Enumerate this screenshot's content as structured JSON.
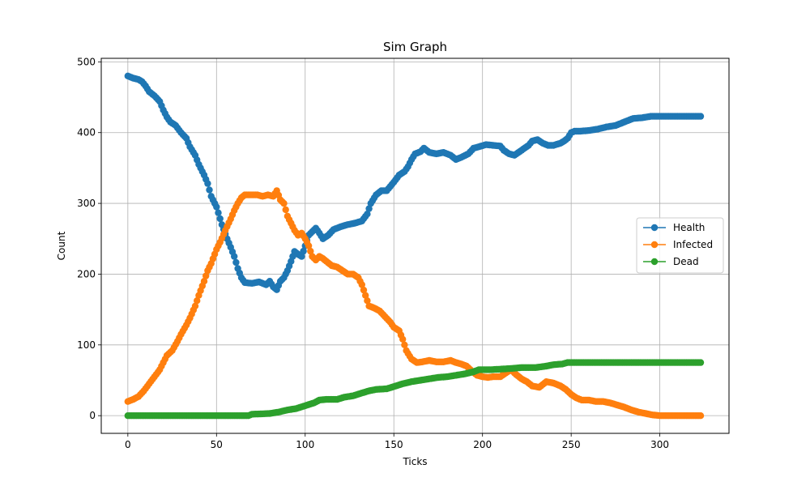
{
  "chart_data": {
    "type": "line",
    "title": "Sim Graph",
    "xlabel": "Ticks",
    "ylabel": "Count",
    "xlim": [
      -15,
      339
    ],
    "ylim": [
      -25,
      505
    ],
    "xticks": [
      0,
      50,
      100,
      150,
      200,
      250,
      300
    ],
    "yticks": [
      0,
      100,
      200,
      300,
      400,
      500
    ],
    "grid": true,
    "legend_position": "center-right",
    "series": [
      {
        "name": "Health",
        "color": "#1f77b4",
        "points": [
          [
            0,
            480
          ],
          [
            3,
            477
          ],
          [
            6,
            475
          ],
          [
            8,
            472
          ],
          [
            10,
            466
          ],
          [
            12,
            458
          ],
          [
            15,
            452
          ],
          [
            18,
            444
          ],
          [
            20,
            432
          ],
          [
            22,
            422
          ],
          [
            24,
            415
          ],
          [
            27,
            410
          ],
          [
            30,
            400
          ],
          [
            33,
            392
          ],
          [
            35,
            380
          ],
          [
            38,
            368
          ],
          [
            40,
            355
          ],
          [
            43,
            340
          ],
          [
            45,
            328
          ],
          [
            47,
            310
          ],
          [
            50,
            295
          ],
          [
            53,
            270
          ],
          [
            56,
            250
          ],
          [
            58,
            238
          ],
          [
            60,
            225
          ],
          [
            62,
            208
          ],
          [
            64,
            195
          ],
          [
            66,
            188
          ],
          [
            70,
            187
          ],
          [
            74,
            189
          ],
          [
            78,
            185
          ],
          [
            80,
            190
          ],
          [
            82,
            182
          ],
          [
            84,
            178
          ],
          [
            86,
            190
          ],
          [
            88,
            195
          ],
          [
            90,
            205
          ],
          [
            92,
            218
          ],
          [
            94,
            232
          ],
          [
            96,
            228
          ],
          [
            98,
            225
          ],
          [
            100,
            240
          ],
          [
            102,
            255
          ],
          [
            104,
            260
          ],
          [
            106,
            265
          ],
          [
            108,
            258
          ],
          [
            110,
            250
          ],
          [
            113,
            255
          ],
          [
            116,
            263
          ],
          [
            120,
            267
          ],
          [
            124,
            270
          ],
          [
            128,
            272
          ],
          [
            132,
            275
          ],
          [
            135,
            285
          ],
          [
            137,
            300
          ],
          [
            140,
            312
          ],
          [
            143,
            318
          ],
          [
            146,
            318
          ],
          [
            150,
            330
          ],
          [
            153,
            340
          ],
          [
            156,
            345
          ],
          [
            158,
            352
          ],
          [
            160,
            362
          ],
          [
            162,
            370
          ],
          [
            165,
            373
          ],
          [
            167,
            378
          ],
          [
            170,
            372
          ],
          [
            174,
            370
          ],
          [
            178,
            372
          ],
          [
            182,
            368
          ],
          [
            185,
            362
          ],
          [
            188,
            365
          ],
          [
            192,
            370
          ],
          [
            195,
            378
          ],
          [
            198,
            380
          ],
          [
            202,
            383
          ],
          [
            206,
            382
          ],
          [
            210,
            381
          ],
          [
            212,
            375
          ],
          [
            215,
            370
          ],
          [
            218,
            368
          ],
          [
            222,
            375
          ],
          [
            226,
            382
          ],
          [
            228,
            388
          ],
          [
            231,
            390
          ],
          [
            234,
            385
          ],
          [
            237,
            382
          ],
          [
            240,
            382
          ],
          [
            244,
            385
          ],
          [
            246,
            388
          ],
          [
            248,
            392
          ],
          [
            250,
            400
          ],
          [
            252,
            402
          ],
          [
            255,
            402
          ],
          [
            260,
            403
          ],
          [
            265,
            405
          ],
          [
            270,
            408
          ],
          [
            275,
            410
          ],
          [
            280,
            415
          ],
          [
            285,
            420
          ],
          [
            290,
            421
          ],
          [
            295,
            423
          ],
          [
            300,
            423
          ],
          [
            310,
            423
          ],
          [
            323,
            423
          ]
        ]
      },
      {
        "name": "Infected",
        "color": "#ff7f0e",
        "points": [
          [
            0,
            20
          ],
          [
            3,
            23
          ],
          [
            6,
            27
          ],
          [
            9,
            35
          ],
          [
            12,
            45
          ],
          [
            15,
            55
          ],
          [
            18,
            65
          ],
          [
            20,
            75
          ],
          [
            22,
            85
          ],
          [
            25,
            92
          ],
          [
            28,
            105
          ],
          [
            30,
            115
          ],
          [
            33,
            128
          ],
          [
            35,
            138
          ],
          [
            38,
            155
          ],
          [
            40,
            170
          ],
          [
            43,
            190
          ],
          [
            45,
            205
          ],
          [
            47,
            215
          ],
          [
            50,
            235
          ],
          [
            52,
            245
          ],
          [
            55,
            262
          ],
          [
            58,
            278
          ],
          [
            60,
            290
          ],
          [
            62,
            300
          ],
          [
            64,
            308
          ],
          [
            66,
            312
          ],
          [
            70,
            312
          ],
          [
            73,
            312
          ],
          [
            76,
            310
          ],
          [
            79,
            312
          ],
          [
            82,
            310
          ],
          [
            84,
            318
          ],
          [
            86,
            305
          ],
          [
            88,
            300
          ],
          [
            90,
            282
          ],
          [
            92,
            272
          ],
          [
            94,
            262
          ],
          [
            96,
            255
          ],
          [
            98,
            258
          ],
          [
            100,
            250
          ],
          [
            102,
            240
          ],
          [
            104,
            225
          ],
          [
            106,
            220
          ],
          [
            108,
            225
          ],
          [
            110,
            222
          ],
          [
            112,
            218
          ],
          [
            115,
            212
          ],
          [
            118,
            210
          ],
          [
            121,
            205
          ],
          [
            124,
            200
          ],
          [
            127,
            200
          ],
          [
            130,
            195
          ],
          [
            132,
            185
          ],
          [
            134,
            170
          ],
          [
            136,
            155
          ],
          [
            139,
            152
          ],
          [
            142,
            148
          ],
          [
            145,
            140
          ],
          [
            148,
            132
          ],
          [
            150,
            125
          ],
          [
            153,
            120
          ],
          [
            155,
            108
          ],
          [
            157,
            92
          ],
          [
            160,
            80
          ],
          [
            163,
            75
          ],
          [
            166,
            76
          ],
          [
            170,
            78
          ],
          [
            174,
            76
          ],
          [
            178,
            76
          ],
          [
            182,
            78
          ],
          [
            185,
            75
          ],
          [
            188,
            73
          ],
          [
            191,
            70
          ],
          [
            194,
            63
          ],
          [
            197,
            57
          ],
          [
            200,
            55
          ],
          [
            203,
            54
          ],
          [
            206,
            55
          ],
          [
            210,
            55
          ],
          [
            213,
            60
          ],
          [
            216,
            65
          ],
          [
            219,
            58
          ],
          [
            222,
            52
          ],
          [
            225,
            48
          ],
          [
            228,
            42
          ],
          [
            232,
            40
          ],
          [
            236,
            48
          ],
          [
            240,
            46
          ],
          [
            244,
            42
          ],
          [
            247,
            37
          ],
          [
            250,
            30
          ],
          [
            253,
            25
          ],
          [
            256,
            22
          ],
          [
            260,
            22
          ],
          [
            264,
            20
          ],
          [
            268,
            20
          ],
          [
            272,
            18
          ],
          [
            276,
            15
          ],
          [
            280,
            12
          ],
          [
            284,
            8
          ],
          [
            288,
            5
          ],
          [
            292,
            3
          ],
          [
            296,
            1
          ],
          [
            300,
            0
          ],
          [
            310,
            0
          ],
          [
            323,
            0
          ]
        ]
      },
      {
        "name": "Dead",
        "color": "#2ca02c",
        "points": [
          [
            0,
            0
          ],
          [
            20,
            0
          ],
          [
            40,
            0
          ],
          [
            60,
            0
          ],
          [
            68,
            0
          ],
          [
            70,
            2
          ],
          [
            80,
            3
          ],
          [
            85,
            5
          ],
          [
            90,
            8
          ],
          [
            95,
            10
          ],
          [
            100,
            14
          ],
          [
            105,
            18
          ],
          [
            108,
            22
          ],
          [
            112,
            23
          ],
          [
            118,
            23
          ],
          [
            122,
            26
          ],
          [
            127,
            28
          ],
          [
            132,
            32
          ],
          [
            136,
            35
          ],
          [
            140,
            37
          ],
          [
            146,
            38
          ],
          [
            150,
            41
          ],
          [
            155,
            45
          ],
          [
            160,
            48
          ],
          [
            165,
            50
          ],
          [
            170,
            52
          ],
          [
            175,
            54
          ],
          [
            180,
            55
          ],
          [
            185,
            57
          ],
          [
            190,
            59
          ],
          [
            195,
            62
          ],
          [
            198,
            65
          ],
          [
            205,
            65
          ],
          [
            212,
            66
          ],
          [
            218,
            67
          ],
          [
            222,
            68
          ],
          [
            230,
            68
          ],
          [
            236,
            70
          ],
          [
            240,
            72
          ],
          [
            245,
            73
          ],
          [
            248,
            75
          ],
          [
            255,
            75
          ],
          [
            270,
            75
          ],
          [
            290,
            75
          ],
          [
            323,
            75
          ]
        ]
      }
    ]
  }
}
